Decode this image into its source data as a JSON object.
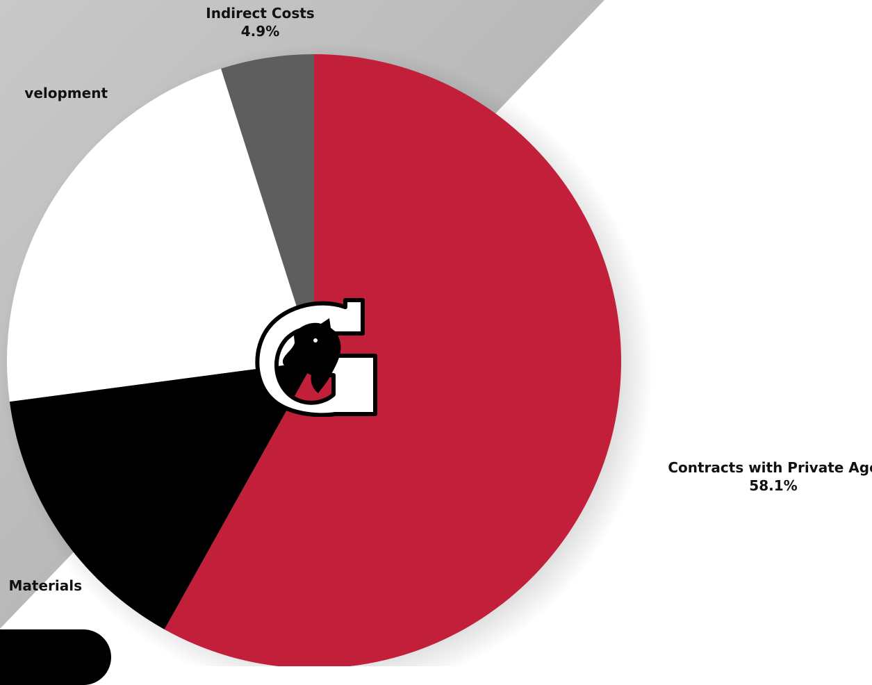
{
  "colors": {
    "background": "#ffffff",
    "gray_band": "#b4b4b4",
    "contracts": "#c21f3b",
    "materials": "#000000",
    "development": "#ffffff",
    "indirect": "#5e5e5e"
  },
  "icons": {
    "logo": "horse-head-g-logo-icon"
  },
  "chart_data": {
    "type": "pie",
    "start_angle_deg": 0,
    "direction": "clockwise",
    "slices": [
      {
        "label": "Contracts with Private Age",
        "value": 58.1,
        "value_label": "58.1%",
        "color": "#c21f3b"
      },
      {
        "label": "Materials",
        "value": 14.8,
        "value_label": "",
        "color": "#000000"
      },
      {
        "label": "velopment",
        "value": 22.2,
        "value_label": "",
        "color": "#ffffff"
      },
      {
        "label": "Indirect Costs",
        "value": 4.9,
        "value_label": "4.9%",
        "color": "#5e5e5e"
      }
    ]
  }
}
